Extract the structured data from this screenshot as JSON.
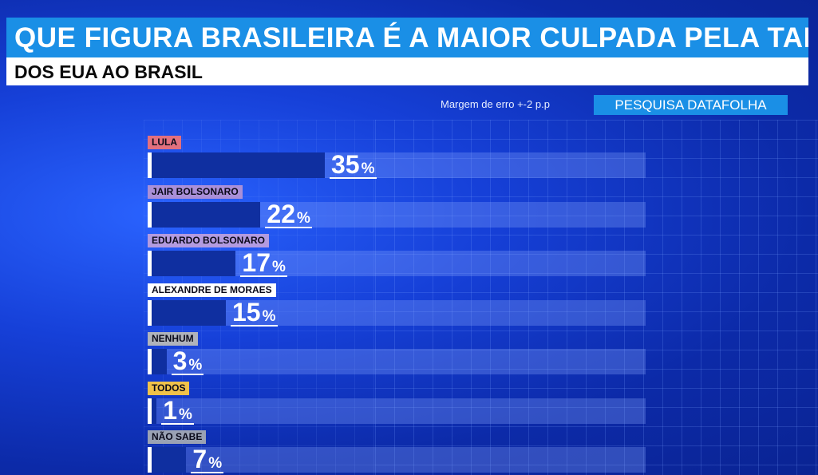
{
  "header": {
    "title": "QUE FIGURA BRASILEIRA É A MAIOR CULPADA PELA TARIFA?",
    "subtitle": "DOS EUA AO BRASIL"
  },
  "source": {
    "margin_note": "Margem de erro +-2 p.p",
    "badge": "PESQUISA DATAFOLHA"
  },
  "chart_data": {
    "type": "bar",
    "orientation": "horizontal",
    "categories": [
      "LULA",
      "JAIR BOLSONARO",
      "EDUARDO BOLSONARO",
      "ALEXANDRE DE MORAES",
      "NENHUM",
      "TODOS",
      "NÃO SABE"
    ],
    "values": [
      35,
      22,
      17,
      15,
      3,
      1,
      7
    ],
    "value_suffix": "%",
    "label_colors": [
      "#e2707e",
      "#a98fd8",
      "#b39be0",
      "#ffffff",
      "#b0b3bb",
      "#f0c24a",
      "#9aa2b4"
    ],
    "bar_color": "#0f2fa0",
    "xlim": [
      0,
      100
    ],
    "grid": true,
    "title": "QUE FIGURA BRASILEIRA É A MAIOR CULPADA PELA TARIFA?",
    "subtitle": "DOS EUA AO BRASIL",
    "xlabel": "",
    "ylabel": ""
  }
}
